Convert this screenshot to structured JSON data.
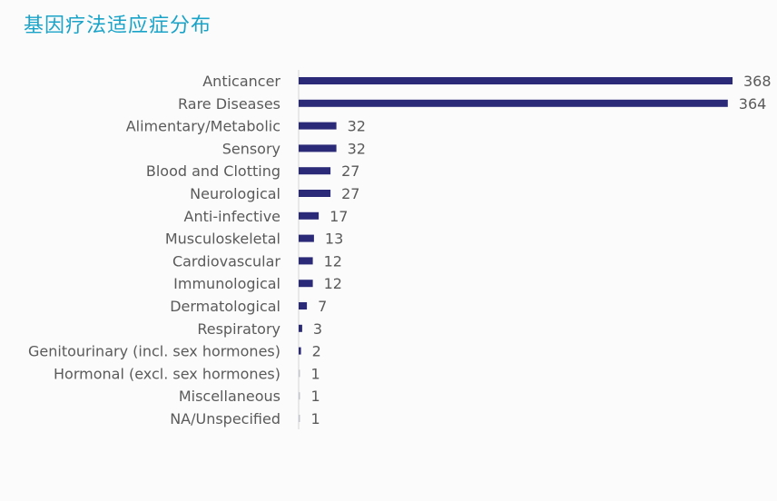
{
  "title": "基因疗法适应症分布",
  "chart_data": {
    "type": "bar",
    "orientation": "horizontal",
    "title": "基因疗法适应症分布",
    "xlabel": "",
    "ylabel": "",
    "categories": [
      "Anticancer",
      "Rare Diseases",
      "Alimentary/Metabolic",
      "Sensory",
      "Blood and Clotting",
      "Neurological",
      "Anti-infective",
      "Musculoskeletal",
      "Cardiovascular",
      "Immunological",
      "Dermatological",
      "Respiratory",
      "Genitourinary (incl. sex hormones)",
      "Hormonal (excl. sex hormones)",
      "Miscellaneous",
      "NA/Unspecified"
    ],
    "values": [
      368,
      364,
      32,
      32,
      27,
      27,
      17,
      13,
      12,
      12,
      7,
      3,
      2,
      1,
      1,
      1
    ],
    "data_labels": [
      "368",
      "364",
      "32",
      "32",
      "27",
      "27",
      "17",
      "13",
      "12",
      "12",
      "7",
      "3",
      "2",
      "1",
      "1",
      "1"
    ],
    "xlim": [
      0,
      368
    ],
    "grid": false,
    "legend": "none",
    "colors": {
      "bar": "#2b2a78",
      "small_bar": "#c4c4cc",
      "axis": "#d6d6d6",
      "label": "#5a5a5a",
      "title": "#1aa3c8"
    }
  }
}
